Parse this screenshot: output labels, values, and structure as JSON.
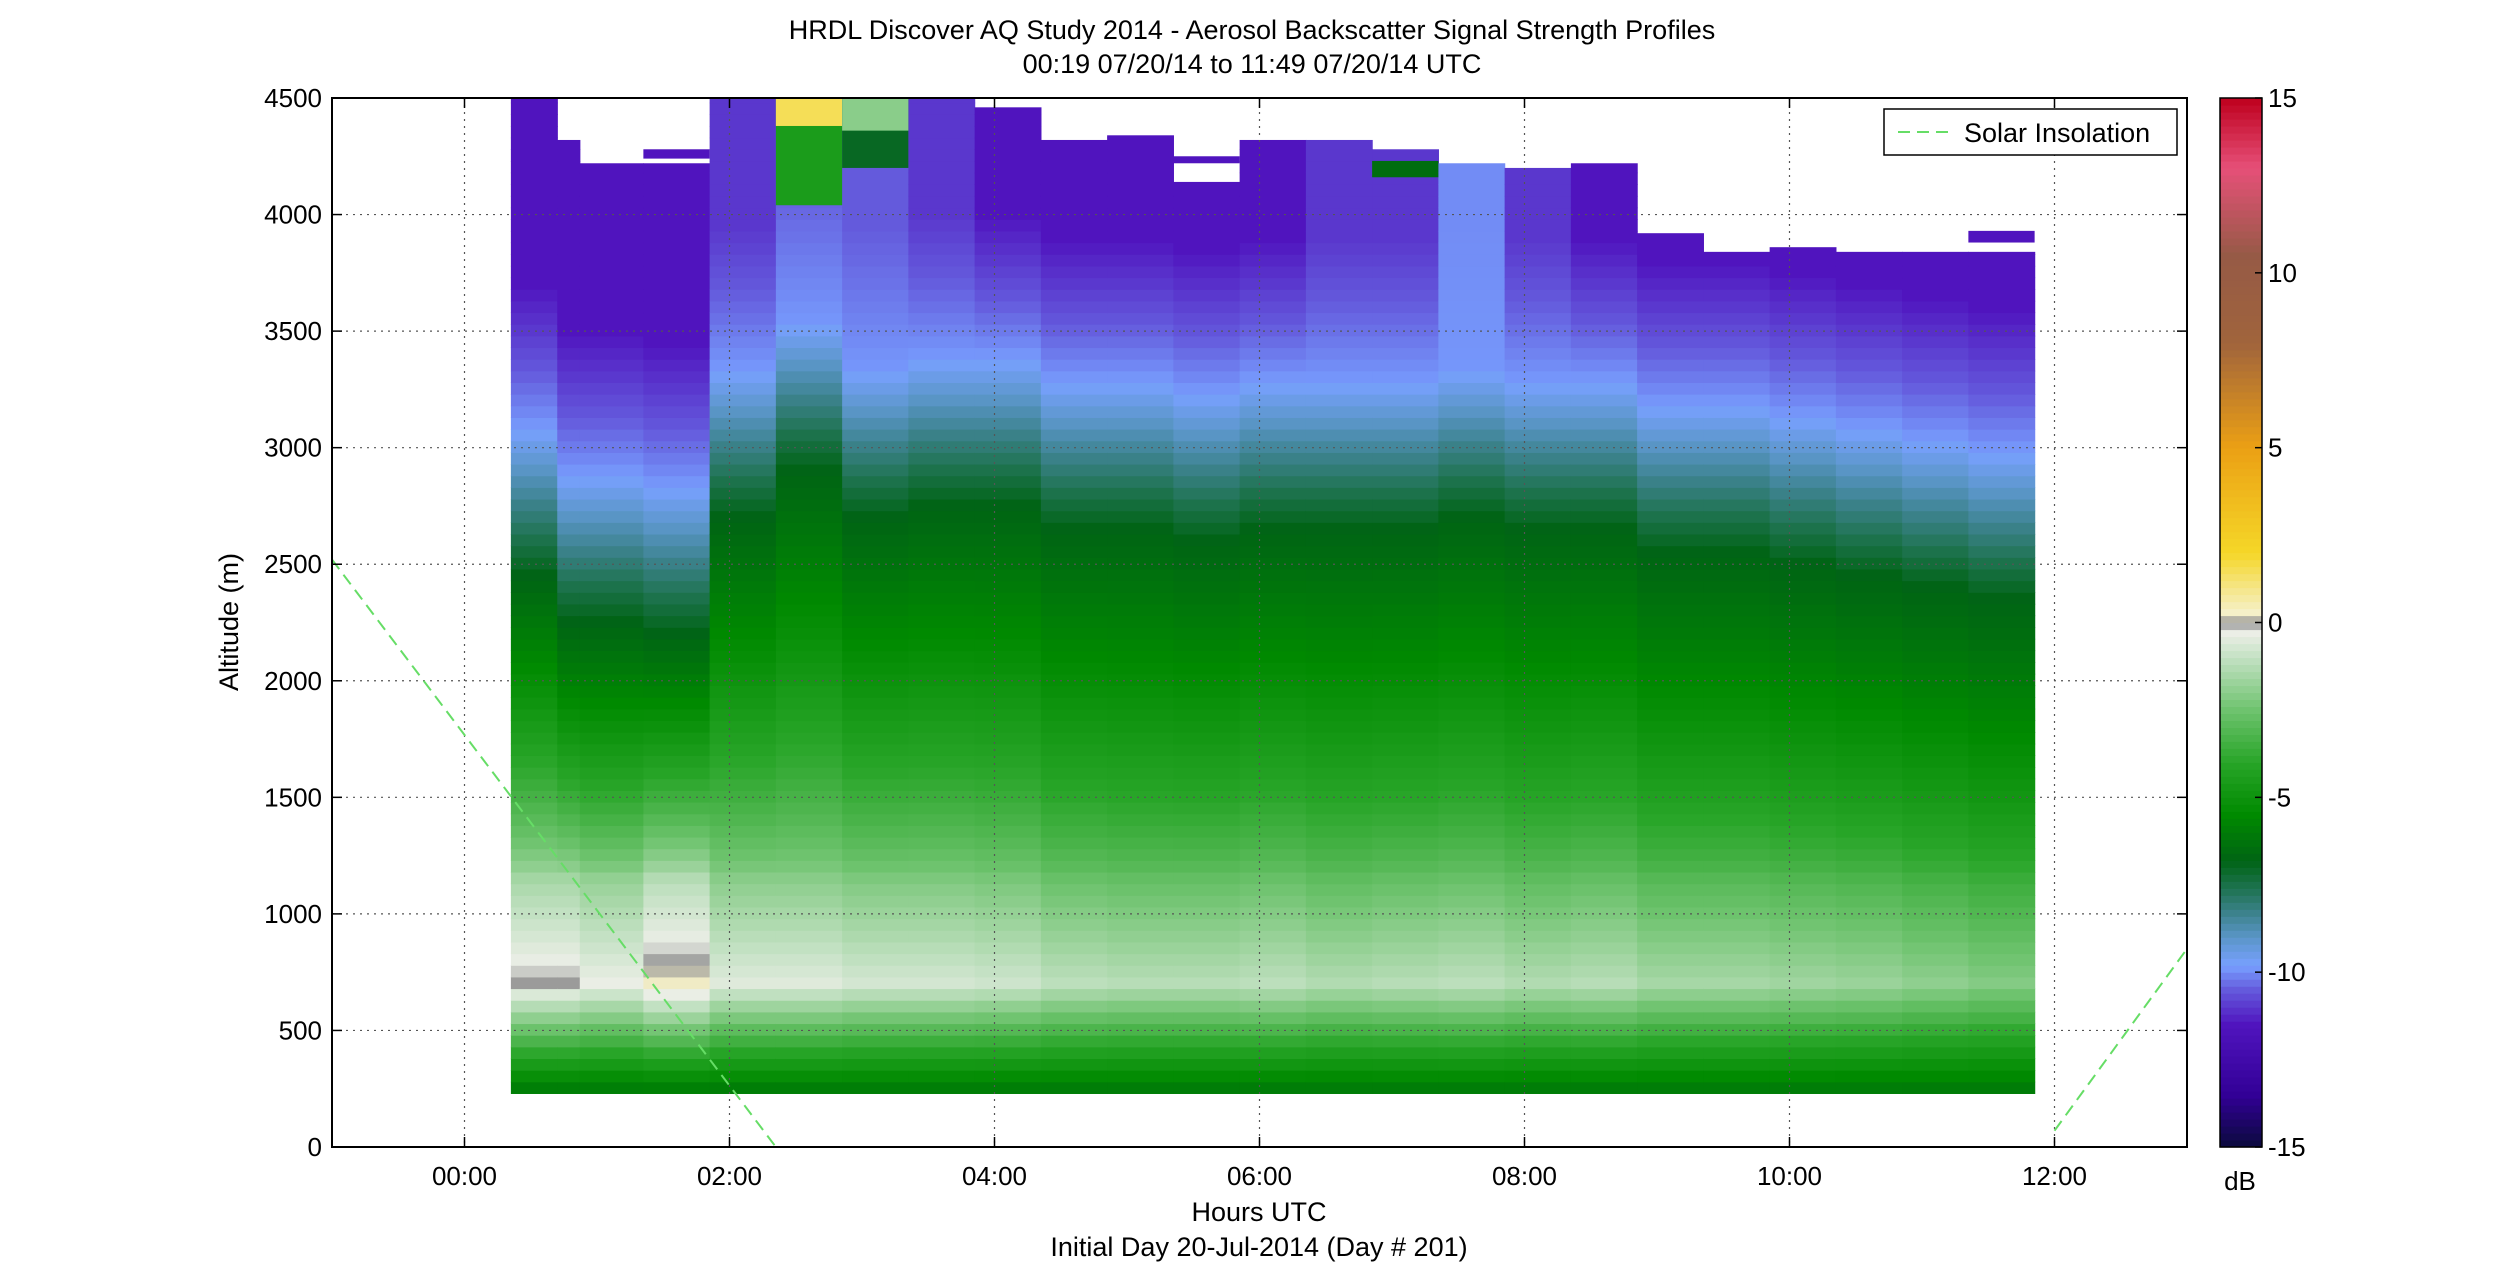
{
  "chart_data": {
    "type": "heatmap",
    "title": "HRDL Discover AQ Study 2014 - Aerosol Backscatter Signal Strength Profiles",
    "subtitle": "00:19 07/20/14 to 11:49 07/20/14  UTC",
    "xlabel": "Hours UTC",
    "xlabel2": "Initial Day 20-Jul-2014 (Day # 201)",
    "ylabel": "Altitude (m)",
    "xlim": [
      -1.0,
      13.0
    ],
    "ylim": [
      0,
      4500
    ],
    "x_ticks": [
      {
        "value": 0,
        "label": "00:00"
      },
      {
        "value": 2,
        "label": "02:00"
      },
      {
        "value": 4,
        "label": "04:00"
      },
      {
        "value": 6,
        "label": "06:00"
      },
      {
        "value": 8,
        "label": "08:00"
      },
      {
        "value": 10,
        "label": "10:00"
      },
      {
        "value": 12,
        "label": "12:00"
      }
    ],
    "y_ticks": [
      {
        "value": 0,
        "label": "0"
      },
      {
        "value": 500,
        "label": "500"
      },
      {
        "value": 1000,
        "label": "1000"
      },
      {
        "value": 1500,
        "label": "1500"
      },
      {
        "value": 2000,
        "label": "2000"
      },
      {
        "value": 2500,
        "label": "2500"
      },
      {
        "value": 3000,
        "label": "3000"
      },
      {
        "value": 3500,
        "label": "3500"
      },
      {
        "value": 4000,
        "label": "4000"
      },
      {
        "value": 4500,
        "label": "4500"
      }
    ],
    "grid": true,
    "colorbar": {
      "unit": "dB",
      "range": [
        -15,
        15
      ],
      "ticks": [
        {
          "value": 15,
          "label": "15"
        },
        {
          "value": 10,
          "label": "10"
        },
        {
          "value": 5,
          "label": "5"
        },
        {
          "value": 0,
          "label": "0"
        },
        {
          "value": -5,
          "label": "-5"
        },
        {
          "value": -10,
          "label": "-10"
        },
        {
          "value": -15,
          "label": "-15"
        }
      ]
    },
    "legend": {
      "position": "top-right",
      "entries": [
        "Solar Insolation"
      ]
    },
    "solar_insolation": {
      "color": "#66dd66",
      "style": "dashed",
      "segments": [
        {
          "x": [
            -1.0,
            2.35
          ],
          "y": [
            2520,
            0
          ]
        },
        {
          "x": [
            12.0,
            13.0
          ],
          "y": [
            70,
            850
          ]
        }
      ]
    },
    "profile_bottom_m": 230,
    "profiles": [
      {
        "start": 0.35,
        "end": 0.7,
        "top": 4500,
        "pbl": 2750,
        "minval": -1.5,
        "toplayer": -11.5
      },
      {
        "start": 0.7,
        "end": 0.87,
        "top": 4320,
        "pbl": 2550,
        "minval": -1.5,
        "toplayer": -11.5
      },
      {
        "start": 0.87,
        "end": 1.35,
        "top": 4220,
        "pbl": 2550,
        "minval": -1.8,
        "toplayer": -11.5
      },
      {
        "start": 1.35,
        "end": 1.85,
        "top": 4220,
        "pbl": 2500,
        "minval": -1.2,
        "toplayer": -11.5
      },
      {
        "start": 1.85,
        "end": 2.35,
        "top": 4500,
        "pbl": 3000,
        "minval": -2.0,
        "toplayer": -11.0
      },
      {
        "start": 2.35,
        "end": 2.85,
        "top": 4500,
        "pbl": 3200,
        "minval": -2.0,
        "toplayer": -10.5
      },
      {
        "start": 2.85,
        "end": 3.35,
        "top": 4500,
        "pbl": 3000,
        "minval": -2.2,
        "toplayer": -10.5
      },
      {
        "start": 3.35,
        "end": 3.85,
        "top": 4500,
        "pbl": 3050,
        "minval": -2.2,
        "toplayer": -11.0
      },
      {
        "start": 3.85,
        "end": 4.35,
        "top": 4460,
        "pbl": 3050,
        "minval": -2.3,
        "toplayer": -11.5
      },
      {
        "start": 4.35,
        "end": 4.85,
        "top": 4320,
        "pbl": 2950,
        "minval": -2.6,
        "toplayer": -11.5
      },
      {
        "start": 4.85,
        "end": 5.35,
        "top": 4340,
        "pbl": 2950,
        "minval": -2.7,
        "toplayer": -11.5
      },
      {
        "start": 5.35,
        "end": 5.85,
        "top": 4140,
        "pbl": 2900,
        "minval": -2.7,
        "toplayer": -11.5
      },
      {
        "start": 5.85,
        "end": 6.35,
        "top": 4320,
        "pbl": 2950,
        "minval": -2.6,
        "toplayer": -11.5
      },
      {
        "start": 6.35,
        "end": 6.85,
        "top": 4320,
        "pbl": 2950,
        "minval": -2.8,
        "toplayer": -11.0
      },
      {
        "start": 6.85,
        "end": 7.35,
        "top": 4280,
        "pbl": 2950,
        "minval": -2.7,
        "toplayer": -11.0
      },
      {
        "start": 7.35,
        "end": 7.85,
        "top": 4220,
        "pbl": 3000,
        "minval": -2.6,
        "toplayer": -10.0
      },
      {
        "start": 7.85,
        "end": 8.35,
        "top": 4200,
        "pbl": 2950,
        "minval": -2.8,
        "toplayer": -11.0
      },
      {
        "start": 8.35,
        "end": 8.85,
        "top": 4220,
        "pbl": 2950,
        "minval": -2.7,
        "toplayer": -11.5
      },
      {
        "start": 8.85,
        "end": 9.35,
        "top": 3920,
        "pbl": 2850,
        "minval": -3.0,
        "toplayer": -11.5
      },
      {
        "start": 9.35,
        "end": 9.85,
        "top": 3840,
        "pbl": 2850,
        "minval": -3.0,
        "toplayer": -11.5
      },
      {
        "start": 9.85,
        "end": 10.35,
        "top": 3860,
        "pbl": 2800,
        "minval": -3.1,
        "toplayer": -11.5
      },
      {
        "start": 10.35,
        "end": 10.85,
        "top": 3840,
        "pbl": 2750,
        "minval": -3.2,
        "toplayer": -11.5
      },
      {
        "start": 10.85,
        "end": 11.35,
        "top": 3840,
        "pbl": 2700,
        "minval": -3.4,
        "toplayer": -11.5
      },
      {
        "start": 11.35,
        "end": 11.85,
        "top": 3840,
        "pbl": 2650,
        "minval": -3.6,
        "toplayer": -11.5
      }
    ],
    "patches": [
      {
        "start": 1.35,
        "end": 1.85,
        "bottom": 4240,
        "top": 4280,
        "value": -11.5
      },
      {
        "start": 2.35,
        "end": 2.85,
        "bottom": 4040,
        "top": 4500,
        "value": -4.5
      },
      {
        "start": 2.35,
        "end": 2.85,
        "bottom": 4380,
        "top": 4500,
        "value": 1.5
      },
      {
        "start": 2.85,
        "end": 3.35,
        "bottom": 4200,
        "top": 4500,
        "value": -7.0
      },
      {
        "start": 2.85,
        "end": 3.35,
        "bottom": 4360,
        "top": 4500,
        "value": -2.0
      },
      {
        "start": 5.35,
        "end": 5.85,
        "bottom": 4220,
        "top": 4250,
        "value": -11.5
      },
      {
        "start": 6.85,
        "end": 7.35,
        "bottom": 4160,
        "top": 4230,
        "value": -6.5
      },
      {
        "start": 11.35,
        "end": 11.85,
        "bottom": 3880,
        "top": 3930,
        "value": -11.5
      }
    ]
  }
}
